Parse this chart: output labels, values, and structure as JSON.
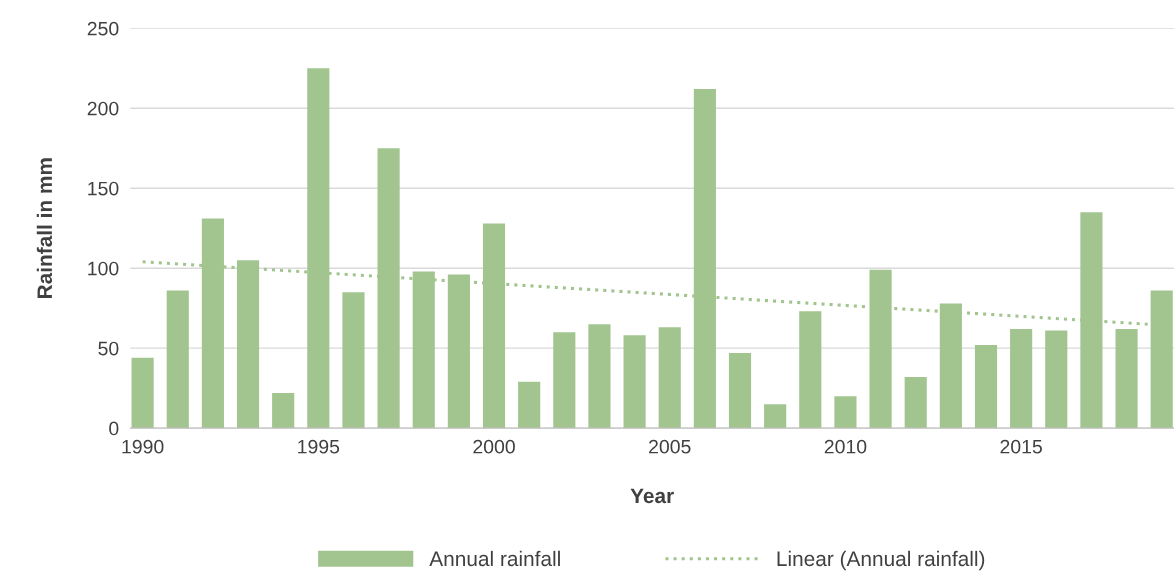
{
  "chart_data": {
    "type": "bar",
    "xlabel": "Year",
    "ylabel": "Rainfall in mm",
    "x": [
      1990,
      1991,
      1992,
      1993,
      1994,
      1995,
      1996,
      1997,
      1998,
      1999,
      2000,
      2001,
      2002,
      2003,
      2004,
      2005,
      2006,
      2007,
      2008,
      2009,
      2010,
      2011,
      2012,
      2013,
      2014,
      2015,
      2016,
      2017,
      2018,
      2019
    ],
    "series": [
      {
        "name": "Annual rainfall",
        "color": "#a2c48f",
        "values": [
          44,
          86,
          131,
          105,
          22,
          225,
          85,
          175,
          98,
          96,
          128,
          29,
          60,
          65,
          58,
          63,
          212,
          47,
          15,
          73,
          20,
          99,
          32,
          78,
          52,
          62,
          61,
          135,
          62,
          86
        ]
      },
      {
        "name": "Linear (Annual rainfall)",
        "type": "line",
        "color": "#a2c48f",
        "line_style": "dotted",
        "x": [
          1990,
          2018.6
        ],
        "values": [
          104,
          65
        ]
      }
    ],
    "xlim": [
      1989.65,
      2019.35
    ],
    "xticks": [
      1990,
      1995,
      2000,
      2005,
      2010,
      2015
    ],
    "ylim": [
      0,
      250
    ],
    "yticks": [
      0,
      50,
      100,
      150,
      200,
      250
    ],
    "grid": "y",
    "legend": "bottom"
  }
}
